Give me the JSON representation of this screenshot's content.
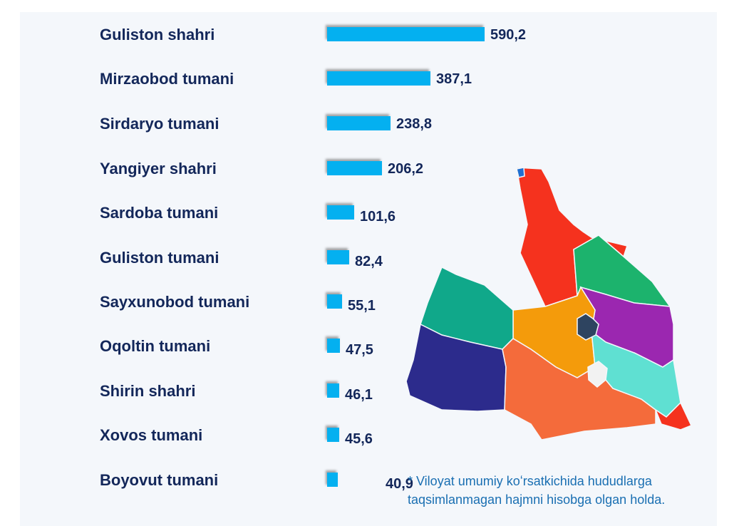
{
  "chart_data": {
    "type": "bar",
    "orientation": "horizontal",
    "categories": [
      "Guliston shahri",
      "Mirzaobod tumani",
      "Sirdaryo tumani",
      "Yangiyer shahri",
      "Sardoba tumani",
      "Guliston tumani",
      "Sayxunobod tumani",
      "Oqoltin tumani",
      "Shirin shahri",
      "Xovos tumani",
      "Boyovut tumani"
    ],
    "values": [
      590.2,
      387.1,
      238.8,
      206.2,
      101.6,
      82.4,
      55.1,
      47.5,
      46.1,
      45.6,
      40.9
    ],
    "value_labels": [
      "590,2",
      "387,1",
      "238,8",
      "206,2",
      "101,6",
      "82,4",
      "55,1",
      "47,5",
      "46,1",
      "45,6",
      "40,9"
    ],
    "bar_color": "#04b0f0",
    "grid": false,
    "legend": "none"
  },
  "footnote": "* Viloyat umumiy koʻrsatkichida hududlarga taqsimlanmagan hajmni hisobga olgan holda.",
  "map": {
    "region_colors": [
      "#f5321e",
      "#1cb36d",
      "#9b27b0",
      "#f49b0b",
      "#10a88a",
      "#2c2b8c",
      "#f46b3b",
      "#5fe0d2",
      "#2e4460",
      "#f2f2f2",
      "#1f6fd0"
    ]
  }
}
